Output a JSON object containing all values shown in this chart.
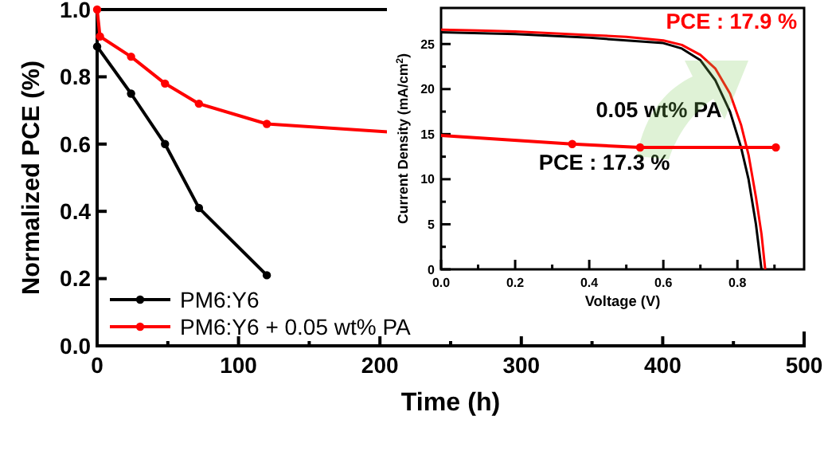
{
  "chart_data": [
    {
      "type": "line",
      "xlabel": "Time (h)",
      "ylabel": "Normalized PCE (%)",
      "xlim": [
        0,
        500
      ],
      "ylim": [
        0,
        1.0
      ],
      "xticks": [
        0,
        {
          "value": 50,
          "label": null
        },
        100,
        {
          "value": 150,
          "label": null
        },
        200,
        {
          "value": 250,
          "label": null
        },
        300,
        {
          "value": 350,
          "label": null
        },
        400,
        {
          "value": 450,
          "label": null
        },
        500
      ],
      "yticks": [
        "0.0",
        0.2,
        0.4,
        0.6,
        0.8,
        "1.0"
      ],
      "marker": "circle",
      "legend": "bottom left",
      "grid": false,
      "series": [
        {
          "name": "PM6:Y6",
          "color": "#000000",
          "x": [
            0,
            24,
            48,
            72,
            120
          ],
          "values": [
            0.89,
            0.75,
            0.6,
            0.41,
            0.21
          ]
        },
        {
          "name": "PM6:Y6 + 0.05 wt% PA",
          "color": "#ff0000",
          "x": [
            0,
            2,
            24,
            48,
            72,
            120,
            336,
            384,
            480
          ],
          "values": [
            1.0,
            0.92,
            0.86,
            0.78,
            0.72,
            0.66,
            0.6,
            0.59,
            0.59
          ]
        }
      ]
    },
    {
      "type": "line",
      "xlabel": "Voltage (V)",
      "ylabel": "Current Density (mA/cm$^{2}$)",
      "xlim": [
        0,
        0.98
      ],
      "ylim": [
        0,
        29
      ],
      "xticks": [
        "0.0",
        {
          "value": 0.1,
          "label": null
        },
        0.2,
        {
          "value": 0.3,
          "label": null
        },
        0.4,
        {
          "value": 0.5,
          "label": null
        },
        0.6,
        {
          "value": 0.7,
          "label": null
        },
        0.8,
        {
          "value": 0.9,
          "label": null
        }
      ],
      "yticks": [
        0,
        {
          "value": 2.5,
          "label": null
        },
        5,
        {
          "value": 7.5,
          "label": null
        },
        10,
        {
          "value": 12.5,
          "label": null
        },
        15,
        {
          "value": 17.5,
          "label": null
        },
        20,
        {
          "value": 22.5,
          "label": null
        },
        25
      ],
      "marker": "none",
      "grid": false,
      "annotations": [
        "PCE : 17.9 %",
        "0.05 wt% PA",
        "PCE : 17.3 %"
      ],
      "series": [
        {
          "color": "#000000",
          "x": [
            0,
            0.2,
            0.4,
            0.6,
            0.65,
            0.7,
            0.74,
            0.78,
            0.81,
            0.83,
            0.85,
            0.865
          ],
          "values": [
            26.3,
            26.1,
            25.7,
            25.1,
            24.5,
            23.2,
            21,
            17.5,
            13.5,
            10,
            5,
            0
          ]
        },
        {
          "color": "#ff0000",
          "x": [
            0,
            0.1,
            0.2,
            0.3,
            0.4,
            0.5,
            0.6,
            0.65,
            0.7,
            0.74,
            0.78,
            0.81,
            0.83,
            0.85,
            0.865,
            0.875
          ],
          "values": [
            26.6,
            26.5,
            26.4,
            26.2,
            26.0,
            25.8,
            25.4,
            24.9,
            23.8,
            22.3,
            19.5,
            16,
            12.7,
            8,
            3.9,
            0
          ]
        }
      ]
    }
  ]
}
